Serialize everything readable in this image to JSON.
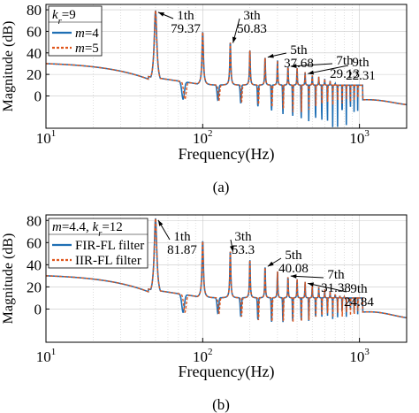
{
  "chart_data": [
    {
      "type": "line",
      "panel_label": "(a)",
      "xlabel": "Frequency(Hz)",
      "ylabel": "Magnitude (dB)",
      "x_scale": "log",
      "xlim": [
        10,
        2000
      ],
      "ylim": [
        -30,
        85
      ],
      "x_ticks": [
        10,
        100,
        1000
      ],
      "x_tick_labels": [
        [
          "10",
          "1"
        ],
        [
          "10",
          "2"
        ],
        [
          "10",
          "3"
        ]
      ],
      "y_ticks": [
        0,
        20,
        40,
        60,
        80
      ],
      "y_tick_labels": [
        "0",
        "20",
        "40",
        "60",
        "80"
      ],
      "grid": true,
      "legend": {
        "placement": "top-left",
        "title": "k_r=9",
        "title_parts": [
          [
            "k",
            "italic"
          ],
          [
            "r",
            "sub-italic"
          ],
          [
            "=9",
            "normal"
          ]
        ],
        "entries": [
          {
            "label_parts": [
              [
                "m",
                "italic"
              ],
              [
                "=4",
                "normal"
              ]
            ],
            "series": 0
          },
          {
            "label_parts": [
              [
                "m",
                "italic"
              ],
              [
                "=5",
                "normal"
              ]
            ],
            "series": 1
          }
        ]
      },
      "series": [
        {
          "name": "m=4",
          "color": "#1f6fb4",
          "style": "solid"
        },
        {
          "name": "m=5",
          "color": "#e0561c",
          "style": "dashed"
        }
      ],
      "harmonic_frequencies_hz": [
        50,
        100,
        150,
        200,
        250,
        300,
        350,
        400,
        450,
        500,
        550,
        600,
        650,
        700,
        750,
        800,
        850,
        900,
        950,
        1000
      ],
      "peak_values_db": [
        79.37,
        60,
        50.83,
        44,
        37.68,
        34,
        29.13,
        27,
        22.31,
        20,
        18,
        16,
        14,
        12,
        10,
        9,
        8,
        7,
        6,
        5
      ],
      "trough_depths_db": {
        "m=4": [
          -1,
          -2,
          -5,
          -8,
          -12,
          -15,
          -18,
          -20,
          -22,
          -24,
          -26,
          -27,
          -28,
          -28,
          -27,
          -25,
          -22,
          -18,
          -14,
          -10
        ],
        "m=5": [
          -1,
          -2,
          -4,
          -6,
          -9,
          -11,
          -13,
          -13,
          -12,
          -11,
          -10,
          -9,
          -8,
          -7,
          -6,
          -5,
          -5,
          -4,
          -4,
          -3
        ]
      },
      "baseline_db": {
        "low": 30,
        "knee_hz": 45
      },
      "tail": {
        "bump_hz": 1250,
        "bump_db": 3
      },
      "annotations": [
        {
          "order": "1th",
          "value": "79.37",
          "freq": 50
        },
        {
          "order": "3th",
          "value": "50.83",
          "freq": 150
        },
        {
          "order": "5th",
          "value": "37.68",
          "freq": 250
        },
        {
          "order": "7th",
          "value": "29.13",
          "freq": 350
        },
        {
          "order": "9th",
          "value": "22.31",
          "freq": 450
        }
      ]
    },
    {
      "type": "line",
      "panel_label": "(b)",
      "xlabel": "Frequency(Hz)",
      "ylabel": "Magnitude (dB)",
      "x_scale": "log",
      "xlim": [
        10,
        2000
      ],
      "ylim": [
        -30,
        85
      ],
      "x_ticks": [
        10,
        100,
        1000
      ],
      "x_tick_labels": [
        [
          "10",
          "1"
        ],
        [
          "10",
          "2"
        ],
        [
          "10",
          "3"
        ]
      ],
      "y_ticks": [
        0,
        20,
        40,
        60,
        80
      ],
      "y_tick_labels": [
        "0",
        "20",
        "40",
        "60",
        "80"
      ],
      "grid": true,
      "legend": {
        "placement": "top-left",
        "title": "m=4.4, k_r=12",
        "title_parts": [
          [
            "m",
            "italic"
          ],
          [
            "=4.4, ",
            "normal"
          ],
          [
            "k",
            "italic"
          ],
          [
            "r",
            "sub-italic"
          ],
          [
            "=12",
            "normal"
          ]
        ],
        "entries": [
          {
            "label_parts": [
              [
                "FIR-FL filter",
                "normal"
              ]
            ],
            "series": 0
          },
          {
            "label_parts": [
              [
                "IIR-FL filter",
                "normal"
              ]
            ],
            "series": 1
          }
        ]
      },
      "series": [
        {
          "name": "FIR-FL filter",
          "color": "#1f6fb4",
          "style": "solid"
        },
        {
          "name": "IIR-FL filter",
          "color": "#e0561c",
          "style": "dashed"
        }
      ],
      "harmonic_frequencies_hz": [
        50,
        100,
        150,
        200,
        250,
        300,
        350,
        400,
        450,
        500,
        550,
        600,
        650,
        700,
        750,
        800,
        850,
        900,
        950,
        1000
      ],
      "peak_values_db": [
        81.87,
        62,
        53.3,
        46,
        40.08,
        35,
        31.38,
        28,
        24.84,
        22,
        20,
        18,
        16,
        14,
        12,
        11,
        10,
        9,
        8,
        7
      ],
      "trough_depths_db": {
        "FIR-FL filter": [
          -1,
          -2,
          -5,
          -8,
          -10,
          -10,
          -10,
          -9,
          -9,
          -8,
          -8,
          -7,
          -7,
          -6,
          -6,
          -5,
          -5,
          -4,
          -4,
          -4
        ],
        "IIR-FL filter": [
          -1,
          -2,
          -5,
          -8,
          -10,
          -10,
          -10,
          -9,
          -9,
          -8,
          -8,
          -7,
          -7,
          -6,
          -6,
          -5,
          -5,
          -4,
          -4,
          -4
        ]
      },
      "baseline_db": {
        "low": 30,
        "knee_hz": 45
      },
      "tail": {
        "bump_hz": 1250,
        "bump_db": 4
      },
      "annotations": [
        {
          "order": "1th",
          "value": "81.87",
          "freq": 50
        },
        {
          "order": "3th",
          "value": "53.3",
          "freq": 150
        },
        {
          "order": "5th",
          "value": "40.08",
          "freq": 250
        },
        {
          "order": "7th",
          "value": "31.38",
          "freq": 350
        },
        {
          "order": "9th",
          "value": "24.84",
          "freq": 450
        }
      ]
    }
  ]
}
